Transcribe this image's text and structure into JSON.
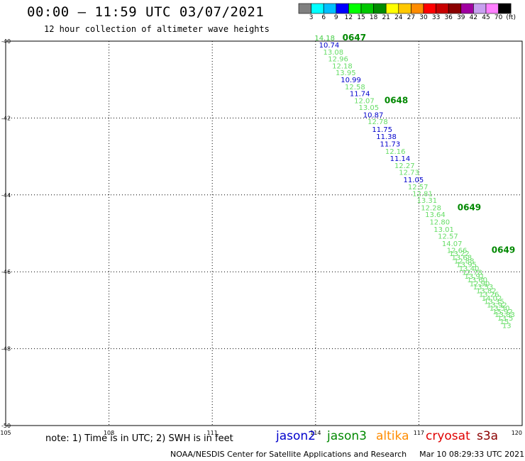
{
  "header": {
    "title": "00:00 – 11:59 UTC 03/07/2021",
    "subtitle": "12 hour collection of altimeter wave heights"
  },
  "color_scale": {
    "labels": [
      "3",
      "6",
      "9",
      "12",
      "15",
      "18",
      "21",
      "24",
      "27",
      "30",
      "33",
      "36",
      "39",
      "42",
      "45",
      "70"
    ],
    "unit_label": "(ft)",
    "colors": [
      "#808080",
      "#00ffff",
      "#00bfff",
      "#0000ff",
      "#00ff00",
      "#00c800",
      "#008c00",
      "#ffff00",
      "#ffc800",
      "#ff8c00",
      "#ff0000",
      "#c80000",
      "#8b0000",
      "#a000a0",
      "#c8a0f0",
      "#ff80ff",
      "#000000"
    ]
  },
  "map": {
    "lon_ticks": [
      "105",
      "108",
      "111",
      "114",
      "117",
      "120"
    ],
    "lat_ticks": [
      "-40",
      "-42",
      "-44",
      "-46",
      "-48",
      "-50"
    ]
  },
  "track": {
    "points": [
      {
        "label": "14.18",
        "lon": 113.97,
        "lat": -39.98,
        "color": "#44cc44"
      },
      {
        "label": "10.74",
        "lon": 114.1,
        "lat": -40.17,
        "color": "#0000cc"
      },
      {
        "label": "13.08",
        "lon": 114.22,
        "lat": -40.35,
        "color": "#66dd66"
      },
      {
        "label": "12.96",
        "lon": 114.36,
        "lat": -40.53,
        "color": "#66dd66"
      },
      {
        "label": "12.18",
        "lon": 114.48,
        "lat": -40.71,
        "color": "#66dd66"
      },
      {
        "label": "13.95",
        "lon": 114.58,
        "lat": -40.89,
        "color": "#66dd66"
      },
      {
        "label": "10.99",
        "lon": 114.73,
        "lat": -41.07,
        "color": "#0000cc"
      },
      {
        "label": "12.58",
        "lon": 114.85,
        "lat": -41.25,
        "color": "#66dd66"
      },
      {
        "label": "11.74",
        "lon": 114.99,
        "lat": -41.43,
        "color": "#0000cc"
      },
      {
        "label": "12.07",
        "lon": 115.12,
        "lat": -41.61,
        "color": "#66dd66"
      },
      {
        "label": "13.05",
        "lon": 115.25,
        "lat": -41.79,
        "color": "#66dd66"
      },
      {
        "label": "10.87",
        "lon": 115.38,
        "lat": -41.98,
        "color": "#0000cc"
      },
      {
        "label": "12.78",
        "lon": 115.51,
        "lat": -42.16,
        "color": "#66dd66"
      },
      {
        "label": "11.75",
        "lon": 115.64,
        "lat": -42.36,
        "color": "#0000cc"
      },
      {
        "label": "11.38",
        "lon": 115.76,
        "lat": -42.55,
        "color": "#0000cc"
      },
      {
        "label": "11.73",
        "lon": 115.87,
        "lat": -42.74,
        "color": "#0000cc"
      },
      {
        "label": "12.16",
        "lon": 116.02,
        "lat": -42.93,
        "color": "#66dd66"
      },
      {
        "label": "11.14",
        "lon": 116.16,
        "lat": -43.12,
        "color": "#0000cc"
      },
      {
        "label": "12.27",
        "lon": 116.29,
        "lat": -43.3,
        "color": "#66dd66"
      },
      {
        "label": "12.73",
        "lon": 116.42,
        "lat": -43.48,
        "color": "#66dd66"
      },
      {
        "label": "11.05",
        "lon": 116.55,
        "lat": -43.67,
        "color": "#0000cc"
      },
      {
        "label": "12.57",
        "lon": 116.68,
        "lat": -43.86,
        "color": "#66dd66"
      },
      {
        "label": "12.81",
        "lon": 116.81,
        "lat": -44.03,
        "color": "#66dd66"
      },
      {
        "label": "13.31",
        "lon": 116.94,
        "lat": -44.21,
        "color": "#66dd66"
      },
      {
        "label": "12.28",
        "lon": 117.06,
        "lat": -44.4,
        "color": "#66dd66"
      },
      {
        "label": "13.64",
        "lon": 117.18,
        "lat": -44.58,
        "color": "#66dd66"
      },
      {
        "label": "12.80",
        "lon": 117.31,
        "lat": -44.77,
        "color": "#66dd66"
      },
      {
        "label": "13.01",
        "lon": 117.43,
        "lat": -44.96,
        "color": "#66dd66"
      },
      {
        "label": "12.57",
        "lon": 117.55,
        "lat": -45.14,
        "color": "#66dd66"
      },
      {
        "label": "14.07",
        "lon": 117.67,
        "lat": -45.33,
        "color": "#66dd66"
      },
      {
        "label": "12.66",
        "lon": 117.81,
        "lat": -45.51,
        "color": "#66dd66"
      },
      {
        "label": "13.22",
        "lon": 117.88,
        "lat": -45.59,
        "color": "#66dd66"
      },
      {
        "label": "13.68",
        "lon": 117.95,
        "lat": -45.69,
        "color": "#66dd66"
      },
      {
        "label": "12.88",
        "lon": 118.02,
        "lat": -45.78,
        "color": "#66dd66"
      },
      {
        "label": "13.95",
        "lon": 118.09,
        "lat": -45.88,
        "color": "#66dd66"
      },
      {
        "label": "13.40",
        "lon": 118.16,
        "lat": -45.98,
        "color": "#66dd66"
      },
      {
        "label": "12.78",
        "lon": 118.25,
        "lat": -46.08,
        "color": "#66dd66"
      },
      {
        "label": "13.91",
        "lon": 118.32,
        "lat": -46.18,
        "color": "#66dd66"
      },
      {
        "label": "13.60",
        "lon": 118.4,
        "lat": -46.27,
        "color": "#66dd66"
      },
      {
        "label": "12.90",
        "lon": 118.47,
        "lat": -46.37,
        "color": "#66dd66"
      },
      {
        "label": "13.53",
        "lon": 118.57,
        "lat": -46.46,
        "color": "#66dd66"
      },
      {
        "label": "13.82",
        "lon": 118.66,
        "lat": -46.56,
        "color": "#66dd66"
      },
      {
        "label": "13.26",
        "lon": 118.74,
        "lat": -46.65,
        "color": "#66dd66"
      },
      {
        "label": "14.02",
        "lon": 118.82,
        "lat": -46.75,
        "color": "#66dd66"
      },
      {
        "label": "13.35",
        "lon": 118.89,
        "lat": -46.84,
        "color": "#66dd66"
      },
      {
        "label": "13.92",
        "lon": 118.97,
        "lat": -46.93,
        "color": "#66dd66"
      },
      {
        "label": "13.50",
        "lon": 119.05,
        "lat": -47.01,
        "color": "#66dd66"
      },
      {
        "label": "15.92",
        "lon": 119.14,
        "lat": -47.1,
        "color": "#66dd66"
      },
      {
        "label": "13.83",
        "lon": 119.2,
        "lat": -47.18,
        "color": "#66dd66"
      },
      {
        "label": "13.5",
        "lon": 119.28,
        "lat": -47.27,
        "color": "#66dd66"
      },
      {
        "label": "15",
        "lon": 119.35,
        "lat": -47.36,
        "color": "#66dd66"
      },
      {
        "label": "13",
        "lon": 119.42,
        "lat": -47.46,
        "color": "#66dd66"
      }
    ],
    "time_labels": [
      {
        "label": "0647",
        "lon": 114.78,
        "lat": -39.98
      },
      {
        "label": "0648",
        "lon": 116.0,
        "lat": -41.61
      },
      {
        "label": "0649",
        "lon": 118.12,
        "lat": -44.4
      },
      {
        "label": "0649",
        "lon": 119.11,
        "lat": -45.51
      }
    ]
  },
  "footer": {
    "note": "note:  1) Time is in UTC;  2) SWH is in feet",
    "satellites": [
      {
        "name": "jason2",
        "color": "#0000cc"
      },
      {
        "name": "jason3",
        "color": "#008800"
      },
      {
        "name": "altika",
        "color": "#ff8c00"
      },
      {
        "name": "cryosat",
        "color": "#e00000"
      },
      {
        "name": "s3a",
        "color": "#8b0000"
      }
    ],
    "credit": "NOAA/NESDIS Center for Satellite Applications and Research",
    "timestamp": "Mar 10 08:29:33 UTC 2021"
  }
}
